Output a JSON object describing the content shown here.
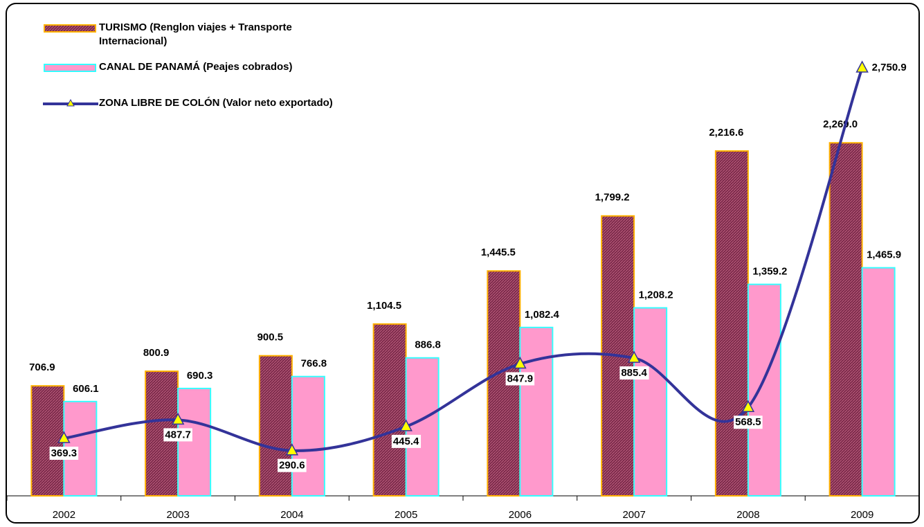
{
  "chart_data": {
    "type": "bar",
    "categories": [
      "2002",
      "2003",
      "2004",
      "2005",
      "2006",
      "2007",
      "2008",
      "2009"
    ],
    "ylim": [
      0,
      3000
    ],
    "legend": "top-left",
    "series": [
      {
        "name": "TURISMO (Renglon viajes + Transporte Internacional)",
        "type": "bar",
        "color": "#7a2a4a",
        "border": "#ffb000",
        "values": [
          706.9,
          800.9,
          900.5,
          1104.5,
          1445.5,
          1799.2,
          2216.6,
          2269.0
        ],
        "value_labels": [
          "706.9",
          "800.9",
          "900.5",
          "1,104.5",
          "1,445.5",
          "1,799.2",
          "2,216.6",
          "2,269.0"
        ]
      },
      {
        "name": "CANAL DE PANAMÁ (Peajes cobrados)",
        "type": "bar",
        "color": "#ff99cc",
        "border": "#33ffff",
        "values": [
          606.1,
          690.3,
          766.8,
          886.8,
          1082.4,
          1208.2,
          1359.2,
          1465.9
        ],
        "value_labels": [
          "606.1",
          "690.3",
          "766.8",
          "886.8",
          "1,082.4",
          "1,208.2",
          "1,359.2",
          "1,465.9"
        ]
      },
      {
        "name": "ZONA LIBRE DE COLÓN (Valor neto exportado)",
        "type": "line",
        "color": "#333399",
        "marker": "#ffff00",
        "values": [
          369.3,
          487.7,
          290.6,
          445.4,
          847.9,
          885.4,
          568.5,
          2750.9
        ],
        "value_labels": [
          "369.3",
          "487.7",
          "290.6",
          "445.4",
          "847.9",
          "885.4",
          "568.5",
          "2,750.9"
        ]
      }
    ]
  }
}
